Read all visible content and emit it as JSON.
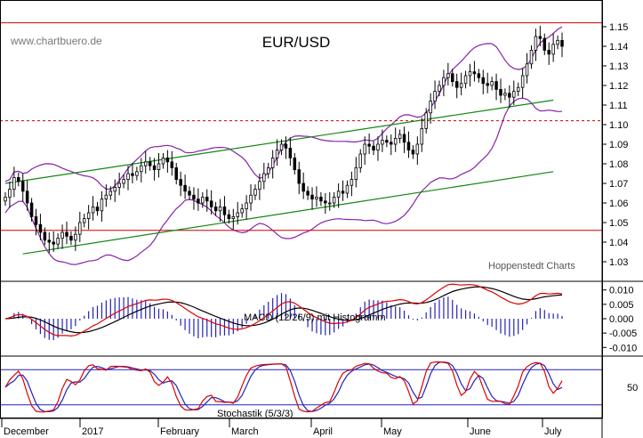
{
  "chart_data": [
    {
      "type": "line",
      "title": "EUR/USD",
      "source_text": "www.chartbuero.de",
      "credit": "Hoppenstedt Charts",
      "ylim": [
        1.02,
        1.16
      ],
      "yticks": [
        1.03,
        1.04,
        1.05,
        1.06,
        1.07,
        1.08,
        1.09,
        1.1,
        1.11,
        1.12,
        1.13,
        1.14,
        1.15
      ],
      "ytick_labels": [
        "1.03",
        "1.04",
        "1.05",
        "1.06",
        "1.07",
        "1.08",
        "1.09",
        "1.10",
        "1.11",
        "1.12",
        "1.13",
        "1.14",
        "1.15"
      ],
      "x_labels": [
        "December",
        "2017",
        "February",
        "March",
        "April",
        "May",
        "June",
        "July"
      ],
      "horizontal_lines": [
        {
          "value": 1.152,
          "color": "#cc0000",
          "style": "solid"
        },
        {
          "value": 1.102,
          "color": "#cc0000",
          "style": "dashed"
        },
        {
          "value": 1.046,
          "color": "#cc0000",
          "style": "solid"
        }
      ],
      "trend_channel": [
        {
          "x": [
            0,
            125
          ],
          "y": [
            1.07,
            1.1125
          ]
        },
        {
          "x": [
            4,
            125
          ],
          "y": [
            1.034,
            1.076
          ]
        }
      ],
      "close": [
        1.063,
        1.067,
        1.073,
        1.071,
        1.066,
        1.06,
        1.053,
        1.049,
        1.045,
        1.041,
        1.04,
        1.039,
        1.042,
        1.045,
        1.043,
        1.041,
        1.044,
        1.05,
        1.052,
        1.055,
        1.058,
        1.056,
        1.062,
        1.064,
        1.066,
        1.068,
        1.07,
        1.072,
        1.075,
        1.074,
        1.076,
        1.079,
        1.081,
        1.079,
        1.077,
        1.08,
        1.083,
        1.081,
        1.078,
        1.072,
        1.069,
        1.066,
        1.064,
        1.062,
        1.06,
        1.063,
        1.061,
        1.058,
        1.056,
        1.058,
        1.054,
        1.052,
        1.053,
        1.055,
        1.057,
        1.06,
        1.064,
        1.067,
        1.071,
        1.075,
        1.078,
        1.083,
        1.087,
        1.09,
        1.088,
        1.083,
        1.077,
        1.07,
        1.066,
        1.064,
        1.062,
        1.063,
        1.061,
        1.06,
        1.06,
        1.063,
        1.066,
        1.065,
        1.069,
        1.072,
        1.078,
        1.085,
        1.09,
        1.089,
        1.087,
        1.09,
        1.092,
        1.091,
        1.09,
        1.093,
        1.095,
        1.091,
        1.087,
        1.085,
        1.09,
        1.098,
        1.106,
        1.112,
        1.117,
        1.12,
        1.124,
        1.126,
        1.122,
        1.119,
        1.121,
        1.125,
        1.127,
        1.126,
        1.124,
        1.121,
        1.12,
        1.122,
        1.118,
        1.115,
        1.116,
        1.114,
        1.117,
        1.119,
        1.125,
        1.131,
        1.138,
        1.145,
        1.144,
        1.138,
        1.136,
        1.141,
        1.143,
        1.14
      ]
    },
    {
      "type": "line",
      "label": "MACD (12/26/9) mit Histogramm",
      "ylim": [
        -0.013,
        0.013
      ],
      "yticks": [
        0.01,
        0.005,
        0.0,
        -0.005,
        -0.01
      ],
      "ytick_labels": [
        "0.010",
        "0.005",
        "0.000",
        "-0.005",
        "-0.010"
      ],
      "series": [
        {
          "role": "signal",
          "color": "#000000"
        },
        {
          "role": "macd",
          "color": "#dd0000"
        },
        {
          "role": "histogram",
          "color": "#2222bb"
        }
      ]
    },
    {
      "type": "line",
      "label": "Stochastik (5/3/3)",
      "ylim": [
        0,
        100
      ],
      "yticks": [
        50
      ],
      "ytick_labels": [
        "50"
      ],
      "levels": [
        20,
        80
      ],
      "series": [
        {
          "role": "%K",
          "color": "#dd0000"
        },
        {
          "role": "%D",
          "color": "#2222bb"
        }
      ]
    }
  ]
}
